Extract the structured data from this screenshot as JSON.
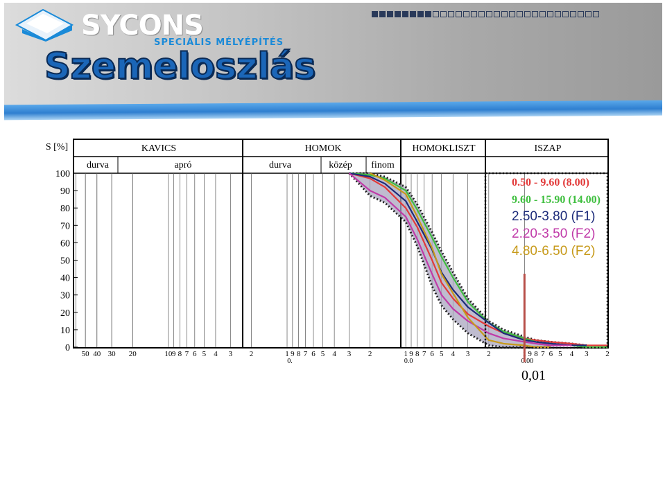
{
  "header": {
    "brand": "SYCONS",
    "brand_sub": "SPECIÁLIS MÉLYÉPÍTÉS",
    "title": "Szemeloszlás",
    "progress_boxes": {
      "filled": 8,
      "total": 30
    }
  },
  "colors": {
    "banner": "#b8b8b8",
    "title_fill": "#1b66b8",
    "accent_blue": "#2f7fd0",
    "envelope_fill": "#a9a6bf"
  },
  "chart_data": {
    "type": "line",
    "ylabel": "S [%]",
    "ylim": [
      0,
      100
    ],
    "y_ticks": [
      "0",
      "10",
      "20",
      "30",
      "40",
      "50",
      "60",
      "70",
      "80",
      "90",
      "100"
    ],
    "x_scale": "log",
    "x_tick_labels": [
      "50",
      "40",
      "30",
      "20",
      "10",
      "9",
      "8",
      "7",
      "6",
      "5",
      "4",
      "3",
      "2",
      "1",
      "9",
      "8",
      "7",
      "6",
      "5",
      "4",
      "3",
      "2",
      "1",
      "9",
      "8",
      "7",
      "6",
      "5",
      "4",
      "3",
      "2",
      "1",
      "9",
      "8",
      "7",
      "6",
      "5",
      "4",
      "3",
      "2"
    ],
    "x_decade_markers": [
      "0.",
      "0.0",
      "0.00"
    ],
    "main_categories": [
      "KAVICS",
      "HOMOK",
      "HOMOKLISZT",
      "ISZAP"
    ],
    "sub_categories": [
      "durva",
      "apró",
      "durva",
      "közép",
      "finom"
    ],
    "series": [
      {
        "name": "0.50 - 9.60 (8.00)",
        "color": "#e23a3a",
        "x": [
          0.3,
          0.2,
          0.15,
          0.1,
          0.08,
          0.06,
          0.05,
          0.04,
          0.03,
          0.02,
          0.015,
          0.01,
          0.008,
          0.006,
          0.004,
          0.003,
          0.002
        ],
        "y": [
          100,
          97,
          92,
          80,
          69,
          50,
          37,
          28,
          19,
          12,
          8,
          5,
          4,
          3,
          2,
          1,
          1
        ]
      },
      {
        "name": "9.60 - 15.90 (14.00)",
        "color": "#3fbf3f",
        "x": [
          0.3,
          0.2,
          0.15,
          0.1,
          0.08,
          0.06,
          0.05,
          0.04,
          0.03,
          0.02,
          0.015,
          0.01,
          0.008,
          0.006,
          0.004,
          0.003,
          0.002
        ],
        "y": [
          100,
          99,
          97,
          90,
          79,
          63,
          52,
          40,
          26,
          14,
          9,
          5,
          3,
          2,
          1,
          0,
          0
        ]
      },
      {
        "name": "2.50-3.80 (F1)",
        "color": "#1c2b7a",
        "x": [
          0.3,
          0.2,
          0.15,
          0.1,
          0.08,
          0.06,
          0.05,
          0.04,
          0.03,
          0.02,
          0.015,
          0.01,
          0.008,
          0.006,
          0.004,
          0.003
        ],
        "y": [
          100,
          98,
          94,
          84,
          72,
          56,
          43,
          33,
          23,
          14,
          8,
          4,
          3,
          2,
          1,
          1
        ]
      },
      {
        "name": "2.20-3.50 (F2)",
        "color": "#c03aa8",
        "x": [
          0.3,
          0.2,
          0.15,
          0.1,
          0.08,
          0.06,
          0.05,
          0.04,
          0.03,
          0.02,
          0.015,
          0.01,
          0.008,
          0.006,
          0.004
        ],
        "y": [
          100,
          90,
          86,
          75,
          62,
          42,
          30,
          22,
          15,
          8,
          5,
          3,
          2,
          1,
          1
        ]
      },
      {
        "name": "4.80-6.50 (F2)",
        "color": "#c79a1a",
        "x": [
          0.2,
          0.15,
          0.1,
          0.08,
          0.06,
          0.05,
          0.04,
          0.03,
          0.02,
          0.015,
          0.01,
          0.008,
          0.006
        ],
        "y": [
          100,
          96,
          88,
          75,
          57,
          42,
          31,
          17,
          4,
          2,
          1,
          0,
          0
        ]
      }
    ],
    "envelope": {
      "upper_x": [
        0.3,
        0.2,
        0.15,
        0.1,
        0.08,
        0.06,
        0.05,
        0.04,
        0.03,
        0.02,
        0.015,
        0.01,
        0.008,
        0.006,
        0.004,
        0.003
      ],
      "upper_y": [
        100,
        100,
        98,
        92,
        82,
        66,
        55,
        43,
        28,
        15,
        10,
        6,
        4,
        3,
        2,
        1
      ],
      "lower_x": [
        0.3,
        0.2,
        0.15,
        0.1,
        0.08,
        0.06,
        0.05,
        0.04,
        0.03,
        0.02,
        0.015,
        0.01,
        0.008,
        0.006
      ],
      "lower_y": [
        100,
        87,
        83,
        72,
        58,
        35,
        24,
        16,
        8,
        1,
        0,
        0,
        0,
        0
      ]
    },
    "marker_line_x": 0.01,
    "annotation": "0,01"
  }
}
